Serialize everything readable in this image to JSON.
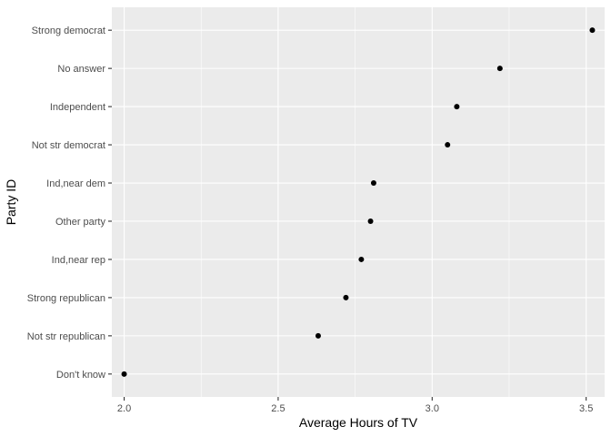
{
  "chart_data": {
    "type": "scatter",
    "title": "",
    "xlabel": "Average Hours of TV",
    "ylabel": "Party ID",
    "xlim": [
      1.96,
      3.56
    ],
    "xticks": [
      2.0,
      2.5,
      3.0,
      3.5
    ],
    "xtick_labels": [
      "2.0",
      "2.5",
      "3.0",
      "3.5"
    ],
    "categories": [
      "Don't know",
      "Not str republican",
      "Strong republican",
      "Ind,near rep",
      "Other party",
      "Ind,near dem",
      "Not str democrat",
      "Independent",
      "No answer",
      "Strong democrat"
    ],
    "values": [
      2.0,
      2.63,
      2.72,
      2.77,
      2.8,
      2.81,
      3.05,
      3.08,
      3.22,
      3.52
    ],
    "grid": true,
    "legend": "none",
    "colors": {
      "panel_background": "#ebebeb",
      "grid_major": "#ffffff",
      "point": "#000000",
      "tick_text": "#4d4d4d",
      "tick_mark": "#333333"
    }
  }
}
